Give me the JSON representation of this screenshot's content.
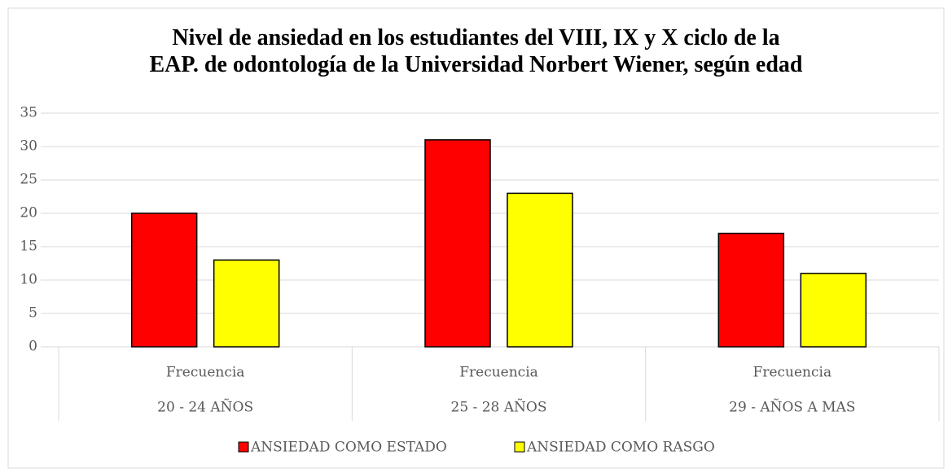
{
  "chart_data": {
    "type": "bar",
    "title": "Nivel de ansiedad en los estudiantes del VIII, IX y X ciclo de la\nEAP. de odontología de la Universidad Norbert Wiener, según edad",
    "categories": [
      "20 - 24 AÑOS",
      "25 - 28 AÑOS",
      "29 - AÑOS A MAS"
    ],
    "subcategories": [
      "Frecuencia",
      "Frecuencia",
      "Frecuencia"
    ],
    "series": [
      {
        "name": "ANSIEDAD COMO ESTADO",
        "color": "#ff0000",
        "values": [
          20,
          31,
          17
        ]
      },
      {
        "name": "ANSIEDAD COMO RASGO",
        "color": "#ffff00",
        "values": [
          13,
          23,
          11
        ]
      }
    ],
    "ylim": [
      0,
      35
    ],
    "yticks": [
      0,
      5,
      10,
      15,
      20,
      25,
      30,
      35
    ],
    "grid": true,
    "legend": "bottom"
  }
}
